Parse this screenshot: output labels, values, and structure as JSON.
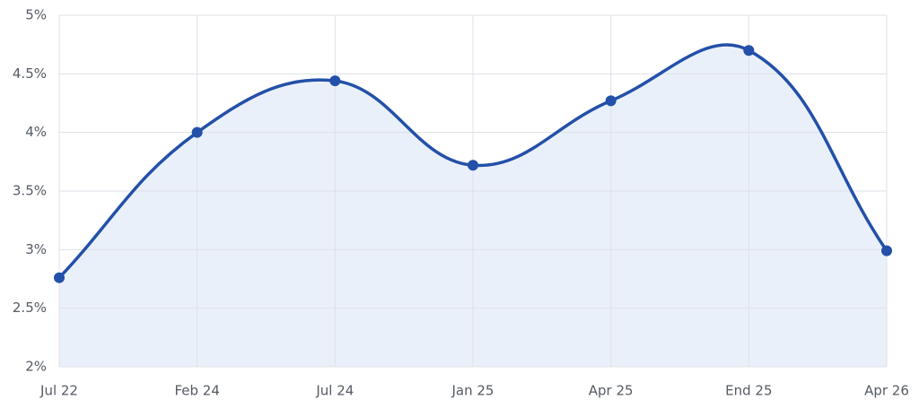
{
  "chart_data": {
    "type": "line",
    "categories": [
      "Jul 22",
      "Feb 24",
      "Jul 24",
      "Jan 25",
      "Apr 25",
      "End 25",
      "Apr 26"
    ],
    "values": [
      2.76,
      4.0,
      4.44,
      3.72,
      4.27,
      4.7,
      2.99
    ],
    "color": "#2350a8",
    "fill": true,
    "fill_color": "#eaf0fa",
    "ylim": [
      2,
      5
    ],
    "yticks": [
      {
        "value": 2,
        "label": "2%"
      },
      {
        "value": 2.5,
        "label": "2.5%"
      },
      {
        "value": 3,
        "label": "3%"
      },
      {
        "value": 3.5,
        "label": "3.5%"
      },
      {
        "value": 4,
        "label": "4%"
      },
      {
        "value": 4.5,
        "label": "4.5%"
      },
      {
        "value": 5,
        "label": "5%"
      }
    ],
    "grid": true
  }
}
